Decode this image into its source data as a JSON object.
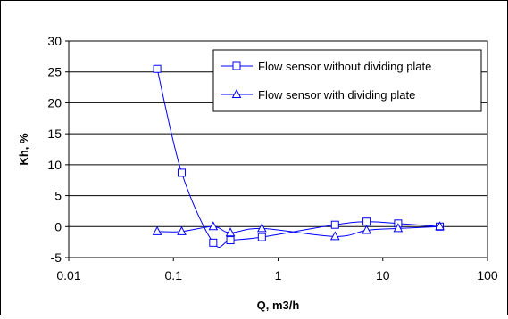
{
  "chart_data": {
    "type": "line",
    "title": "",
    "xlabel": "Q, m3/h",
    "ylabel": "Kh, %",
    "xscale": "log",
    "xlim": [
      0.01,
      100
    ],
    "ylim": [
      -5,
      30
    ],
    "xticks": [
      "0.01",
      "0.1",
      "1",
      "10",
      "100"
    ],
    "yticks": [
      "-5",
      "0",
      "5",
      "10",
      "15",
      "20",
      "25",
      "30"
    ],
    "grid": "horizontal",
    "legend_position": "top-right",
    "series_color": "#0000ff",
    "series": [
      {
        "name": "Flow sensor without dividing plate",
        "marker": "square",
        "x": [
          0.07,
          0.12,
          0.24,
          0.35,
          0.7,
          3.5,
          7,
          14,
          35
        ],
        "y": [
          25.5,
          8.7,
          -2.6,
          -2.2,
          -1.7,
          0.3,
          0.8,
          0.5,
          0.0
        ]
      },
      {
        "name": "Flow sensor with dividing plate",
        "marker": "triangle",
        "x": [
          0.07,
          0.12,
          0.24,
          0.35,
          0.7,
          3.5,
          7,
          14,
          35
        ],
        "y": [
          -0.8,
          -0.8,
          0.0,
          -1.0,
          -0.3,
          -1.6,
          -0.6,
          -0.3,
          0.0
        ]
      }
    ]
  }
}
